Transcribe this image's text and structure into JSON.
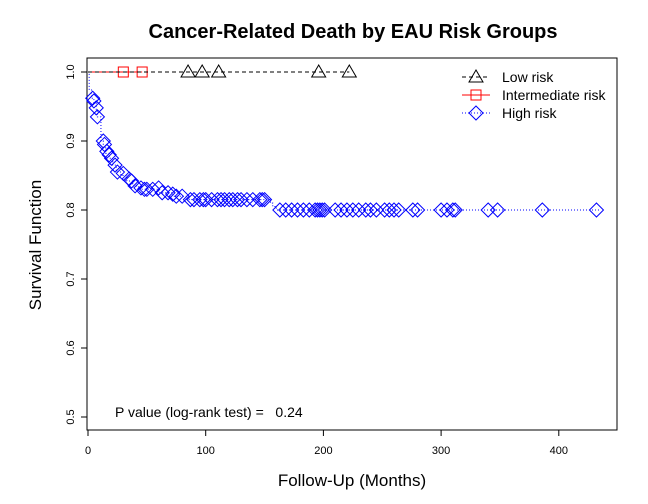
{
  "chart_data": {
    "type": "line",
    "title": "Cancer-Related Death by EAU Risk Groups",
    "xlabel": "Follow-Up (Months)",
    "ylabel": "Survival Function",
    "xlim": [
      0,
      450
    ],
    "ylim": [
      0.48,
      1.02
    ],
    "x_ticks": [
      0,
      100,
      200,
      300,
      400
    ],
    "y_ticks": [
      0.5,
      0.6,
      0.7,
      0.8,
      0.9,
      1.0
    ],
    "x_tick_labels": [
      "0",
      "100",
      "200",
      "300",
      "400"
    ],
    "y_tick_labels": [
      "0.5",
      "0.6",
      "0.7",
      "0.8",
      "0.9",
      "1.0"
    ],
    "grid": false,
    "legend_position": "top-right",
    "annotation": "P value (log-rank test) =   0.24",
    "series": [
      {
        "name": "Low risk",
        "color": "#000000",
        "line_style": "dashed",
        "marker": "triangle",
        "steps": [
          [
            0,
            1.0
          ],
          [
            222,
            1.0
          ]
        ],
        "censored": [
          [
            85,
            1.0
          ],
          [
            97,
            1.0
          ],
          [
            111,
            1.0
          ],
          [
            196,
            1.0
          ],
          [
            222,
            1.0
          ]
        ]
      },
      {
        "name": "Intermediate risk",
        "color": "#ff0000",
        "line_style": "solid",
        "marker": "square",
        "steps": [
          [
            0,
            1.0
          ],
          [
            46,
            1.0
          ]
        ],
        "censored": [
          [
            30,
            1.0
          ],
          [
            46,
            1.0
          ]
        ]
      },
      {
        "name": "High risk",
        "color": "#0000ff",
        "line_style": "dotted",
        "marker": "diamond",
        "steps": [
          [
            0,
            1.0
          ],
          [
            1,
            0.975
          ],
          [
            3,
            0.962
          ],
          [
            5,
            0.955
          ],
          [
            7,
            0.945
          ],
          [
            8,
            0.935
          ],
          [
            11,
            0.9
          ],
          [
            13,
            0.89
          ],
          [
            15,
            0.882
          ],
          [
            18,
            0.875
          ],
          [
            21,
            0.865
          ],
          [
            24,
            0.855
          ],
          [
            28,
            0.85
          ],
          [
            33,
            0.842
          ],
          [
            38,
            0.835
          ],
          [
            43,
            0.83
          ],
          [
            60,
            0.825
          ],
          [
            72,
            0.82
          ],
          [
            86,
            0.815
          ],
          [
            155,
            0.81
          ],
          [
            157,
            0.805
          ],
          [
            160,
            0.8
          ],
          [
            435,
            0.8
          ]
        ],
        "censored": [
          [
            4,
            0.962
          ],
          [
            5,
            0.958
          ],
          [
            7,
            0.948
          ],
          [
            8,
            0.935
          ],
          [
            13,
            0.9
          ],
          [
            14,
            0.895
          ],
          [
            16,
            0.885
          ],
          [
            18,
            0.88
          ],
          [
            20,
            0.875
          ],
          [
            23,
            0.865
          ],
          [
            25,
            0.855
          ],
          [
            30,
            0.853
          ],
          [
            35,
            0.845
          ],
          [
            37,
            0.842
          ],
          [
            40,
            0.835
          ],
          [
            45,
            0.832
          ],
          [
            48,
            0.83
          ],
          [
            50,
            0.83
          ],
          [
            55,
            0.83
          ],
          [
            60,
            0.832
          ],
          [
            63,
            0.825
          ],
          [
            68,
            0.825
          ],
          [
            72,
            0.823
          ],
          [
            75,
            0.82
          ],
          [
            80,
            0.82
          ],
          [
            87,
            0.815
          ],
          [
            90,
            0.815
          ],
          [
            95,
            0.815
          ],
          [
            98,
            0.815
          ],
          [
            100,
            0.815
          ],
          [
            105,
            0.815
          ],
          [
            110,
            0.815
          ],
          [
            113,
            0.815
          ],
          [
            116,
            0.815
          ],
          [
            120,
            0.815
          ],
          [
            123,
            0.815
          ],
          [
            127,
            0.815
          ],
          [
            130,
            0.815
          ],
          [
            135,
            0.815
          ],
          [
            140,
            0.815
          ],
          [
            146,
            0.815
          ],
          [
            148,
            0.815
          ],
          [
            150,
            0.815
          ],
          [
            163,
            0.8
          ],
          [
            168,
            0.8
          ],
          [
            173,
            0.8
          ],
          [
            178,
            0.8
          ],
          [
            183,
            0.8
          ],
          [
            188,
            0.8
          ],
          [
            193,
            0.8
          ],
          [
            195,
            0.8
          ],
          [
            197,
            0.8
          ],
          [
            199,
            0.8
          ],
          [
            201,
            0.8
          ],
          [
            210,
            0.8
          ],
          [
            215,
            0.8
          ],
          [
            220,
            0.8
          ],
          [
            225,
            0.8
          ],
          [
            230,
            0.8
          ],
          [
            236,
            0.8
          ],
          [
            240,
            0.8
          ],
          [
            245,
            0.8
          ],
          [
            252,
            0.8
          ],
          [
            256,
            0.8
          ],
          [
            260,
            0.8
          ],
          [
            264,
            0.8
          ],
          [
            276,
            0.8
          ],
          [
            280,
            0.8
          ],
          [
            300,
            0.8
          ],
          [
            305,
            0.8
          ],
          [
            310,
            0.8
          ],
          [
            312,
            0.8
          ],
          [
            340,
            0.8
          ],
          [
            348,
            0.8
          ],
          [
            386,
            0.8
          ],
          [
            432,
            0.8
          ]
        ]
      }
    ]
  }
}
